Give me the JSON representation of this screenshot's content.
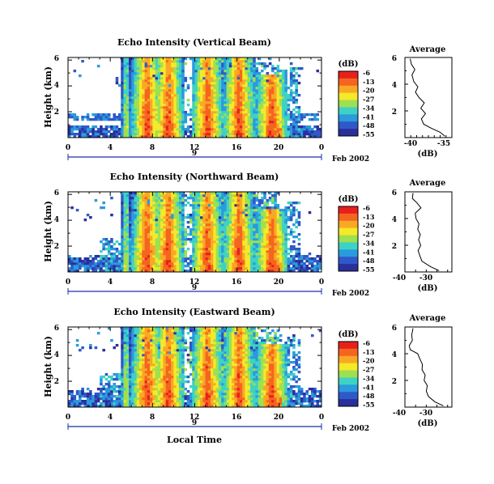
{
  "figure": {
    "date_label": "Feb 2002",
    "day_label": "9",
    "xaxis_title": "Local Time"
  },
  "colorscale": {
    "unit_label": "(dB)",
    "ticks": [
      "-6",
      "-13",
      "-20",
      "-27",
      "-34",
      "-41",
      "-48",
      "-55"
    ],
    "colors": [
      "#e8201c",
      "#f5651f",
      "#f9a825",
      "#f5e92a",
      "#9fe050",
      "#3fd2c4",
      "#2a9bdc",
      "#2f59c8",
      "#2a2f9c"
    ]
  },
  "chart_data": [
    {
      "type": "heatmap",
      "title": "Echo Intensity (Vertical Beam)",
      "ylabel": "Height (km)",
      "x_ticks": [
        "0",
        "4",
        "8",
        "12",
        "16",
        "20",
        "0"
      ],
      "y_ticks": [
        "6",
        "4",
        "2"
      ],
      "xlim": [
        0,
        24
      ],
      "ylim": [
        0,
        6.2
      ],
      "zlim": [
        -55,
        -6
      ],
      "intense_columns_hours": [
        5.5,
        7.5,
        9.5,
        13.2,
        16.2,
        19.3
      ],
      "average_profile": {
        "title": "Average",
        "xlabel": "(dB)",
        "x_ticks": [
          "-40",
          "-35"
        ],
        "y_ticks": [
          "6",
          "4",
          "2"
        ],
        "xlim": [
          -42,
          -34
        ],
        "ylim": [
          0,
          6
        ],
        "values": [
          [
            -35.2,
            0.1
          ],
          [
            -36,
            0.4
          ],
          [
            -37.5,
            0.7
          ],
          [
            -38.8,
            1.0
          ],
          [
            -39.2,
            1.4
          ],
          [
            -38.5,
            1.8
          ],
          [
            -39.3,
            2.2
          ],
          [
            -38.7,
            2.6
          ],
          [
            -39.6,
            3.0
          ],
          [
            -40.2,
            3.4
          ],
          [
            -39.8,
            3.8
          ],
          [
            -40.5,
            4.2
          ],
          [
            -40.8,
            4.7
          ],
          [
            -40.3,
            5.1
          ],
          [
            -40.9,
            5.5
          ],
          [
            -41.1,
            5.9
          ]
        ]
      }
    },
    {
      "type": "heatmap",
      "title": "Echo Intensity (Northward Beam)",
      "ylabel": "Height (km)",
      "x_ticks": [
        "0",
        "4",
        "8",
        "12",
        "16",
        "20",
        "0"
      ],
      "y_ticks": [
        "6",
        "4",
        "2"
      ],
      "xlim": [
        0,
        24
      ],
      "ylim": [
        0,
        6.2
      ],
      "zlim": [
        -55,
        -6
      ],
      "intense_columns_hours": [
        5.5,
        7.5,
        9.5,
        13.2,
        16.2,
        19.3
      ],
      "average_profile": {
        "title": "Average",
        "xlabel": "(dB)",
        "x_ticks": [
          "-40",
          "-30"
        ],
        "y_ticks": [
          "6",
          "4",
          "2"
        ],
        "xlim": [
          -42,
          -20
        ],
        "ylim": [
          0,
          6
        ],
        "values": [
          [
            -26,
            0.1
          ],
          [
            -30,
            0.4
          ],
          [
            -34,
            0.8
          ],
          [
            -35,
            1.2
          ],
          [
            -35.8,
            1.6
          ],
          [
            -34.6,
            2.0
          ],
          [
            -35.6,
            2.4
          ],
          [
            -34.8,
            2.8
          ],
          [
            -36,
            3.2
          ],
          [
            -35.4,
            3.6
          ],
          [
            -36.8,
            4.0
          ],
          [
            -37.2,
            4.4
          ],
          [
            -34.5,
            4.8
          ],
          [
            -36.5,
            5.2
          ],
          [
            -38.5,
            5.5
          ],
          [
            -38.2,
            5.9
          ]
        ]
      }
    },
    {
      "type": "heatmap",
      "title": "Echo Intensity (Eastward Beam)",
      "ylabel": "Height (km)",
      "x_ticks": [
        "0",
        "4",
        "8",
        "12",
        "16",
        "20",
        "0"
      ],
      "y_ticks": [
        "6",
        "4",
        "2"
      ],
      "xlim": [
        0,
        24
      ],
      "ylim": [
        0,
        6.2
      ],
      "zlim": [
        -55,
        -6
      ],
      "intense_columns_hours": [
        5.5,
        7.5,
        9.5,
        13.2,
        16.2,
        19.3
      ],
      "average_profile": {
        "title": "Average",
        "xlabel": "(dB)",
        "x_ticks": [
          "-40",
          "-30"
        ],
        "y_ticks": [
          "6",
          "4",
          "2"
        ],
        "xlim": [
          -42,
          -20
        ],
        "ylim": [
          0,
          6
        ],
        "values": [
          [
            -24,
            0.1
          ],
          [
            -28,
            0.4
          ],
          [
            -31,
            0.8
          ],
          [
            -32,
            1.2
          ],
          [
            -31.5,
            1.6
          ],
          [
            -33,
            2.0
          ],
          [
            -32.5,
            2.4
          ],
          [
            -34,
            2.8
          ],
          [
            -33.8,
            3.2
          ],
          [
            -35,
            3.6
          ],
          [
            -36,
            4.0
          ],
          [
            -39.5,
            4.3
          ],
          [
            -40,
            4.6
          ],
          [
            -38.5,
            5.0
          ],
          [
            -38.8,
            5.4
          ],
          [
            -38.2,
            5.9
          ]
        ]
      }
    }
  ]
}
